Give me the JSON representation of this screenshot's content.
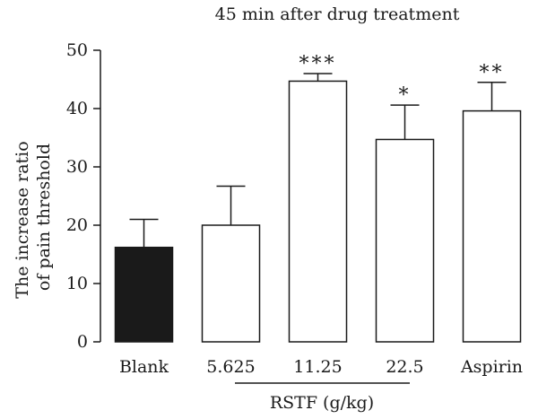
{
  "chart_data": {
    "type": "bar",
    "title": "45 min after drug treatment",
    "ylabel_lines": [
      "The increase ratio",
      "of pain threshold"
    ],
    "xlabel": "",
    "group_label": "RSTF (g/kg)",
    "categories": [
      "Blank",
      "5.625",
      "11.25",
      "22.5",
      "Aspirin"
    ],
    "values": [
      16.2,
      20.0,
      44.7,
      34.7,
      39.6
    ],
    "error_upper": [
      21.0,
      26.7,
      46.0,
      40.6,
      44.5
    ],
    "significance": [
      "",
      "",
      "***",
      "*",
      "**"
    ],
    "bar_fill": [
      "#1a1a1a",
      "#ffffff",
      "#ffffff",
      "#ffffff",
      "#ffffff"
    ],
    "ylim": [
      0,
      50
    ],
    "yticks": [
      "0",
      "10",
      "20",
      "30",
      "40",
      "50"
    ],
    "grid": false,
    "grouped_categories": [
      "5.625",
      "11.25",
      "22.5"
    ]
  }
}
